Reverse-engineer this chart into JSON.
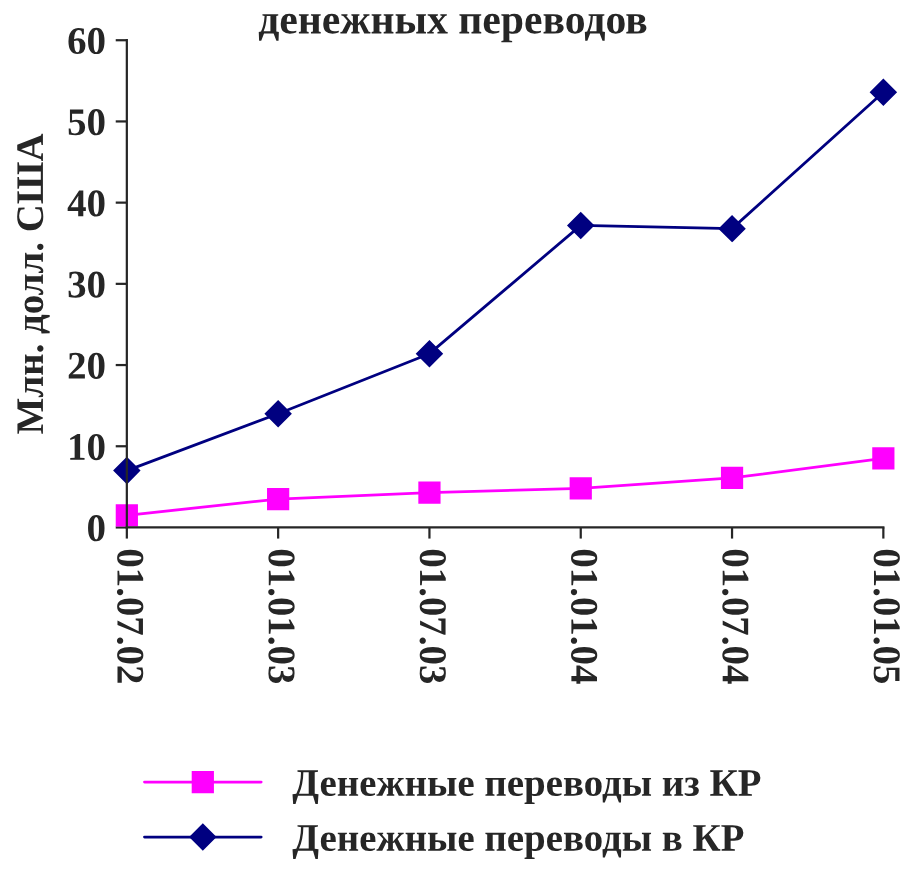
{
  "chart_data": {
    "type": "line",
    "title": "денежных переводов",
    "ylabel": "Млн. долл. США",
    "categories": [
      "01.07.02",
      "01.01.03",
      "01.07.03",
      "01.01.04",
      "01.07.04",
      "01.01.05"
    ],
    "series": [
      {
        "name": "Денежные переводы из КР",
        "color": "#ff00ff",
        "marker": "square",
        "values": [
          1.5,
          3.5,
          4.3,
          4.8,
          6.1,
          8.5
        ]
      },
      {
        "name": "Денежные переводы в КР",
        "color": "#000080",
        "marker": "diamond",
        "values": [
          7.0,
          14.0,
          21.4,
          37.2,
          36.8,
          53.6
        ]
      }
    ],
    "ylim": [
      0,
      60
    ],
    "yticks": [
      0,
      10,
      20,
      30,
      40,
      50,
      60
    ],
    "grid": false,
    "legend": "bottom",
    "line_style": "solid"
  }
}
